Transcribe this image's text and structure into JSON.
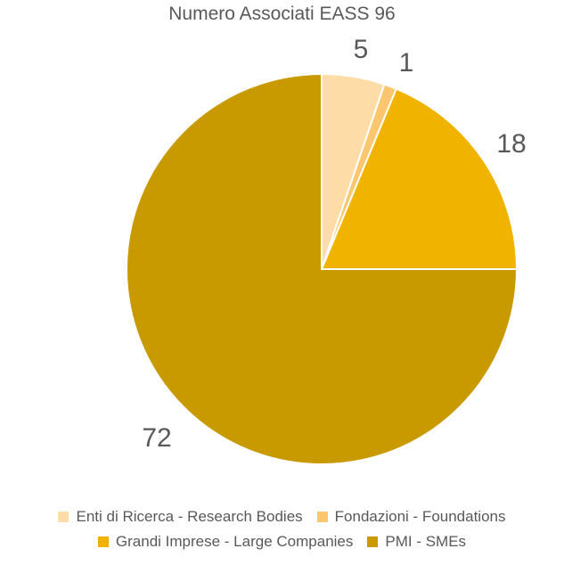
{
  "chart_data": {
    "type": "pie",
    "title": "Numero Associati EASS 96",
    "legend_position": "bottom",
    "slices": [
      {
        "name": "Enti di Ricerca - Research Bodies",
        "value": 5,
        "label": "5",
        "color": "#FDDCA8"
      },
      {
        "name": "Fondazioni - Foundations",
        "value": 1,
        "label": "1",
        "color": "#FBC66E"
      },
      {
        "name": "Grandi Imprese - Large Companies",
        "value": 18,
        "label": "18",
        "color": "#F0B400"
      },
      {
        "name": "PMI - SMEs",
        "value": 72,
        "label": "72",
        "color": "#C99A00"
      }
    ]
  }
}
